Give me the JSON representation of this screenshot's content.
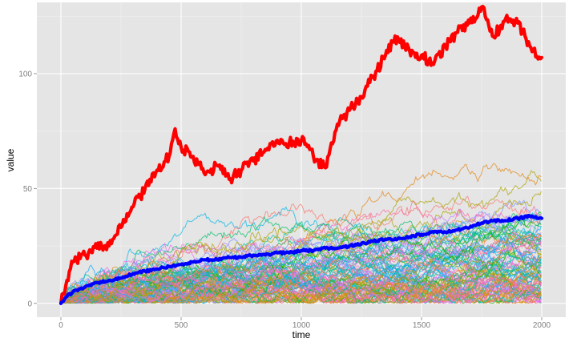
{
  "chart_data": {
    "type": "line",
    "title": "",
    "xlabel": "time",
    "ylabel": "value",
    "xlim": [
      -100,
      2100
    ],
    "ylim": [
      -6,
      131
    ],
    "x_ticks": [
      0,
      500,
      1000,
      1500,
      2000
    ],
    "x_tick_labels": [
      "0",
      "500",
      "1000",
      "1500",
      "2000"
    ],
    "y_ticks": [
      0,
      50,
      100
    ],
    "y_tick_labels": [
      "0",
      "50",
      "100"
    ],
    "grid": true,
    "legend": "none",
    "background": "#e5e5e5",
    "gridline_color": "#ffffff",
    "n_background_series": 100,
    "background_series_note": "about 100 thin random-walk series colored with a hue palette, starting at 0 at time 0 and reaching mostly 0 to 75 by time 2000",
    "background_palette": [
      "#F8766D",
      "#E68613",
      "#CD9600",
      "#ABA300",
      "#7CAE00",
      "#0CB702",
      "#00BE67",
      "#00C19A",
      "#00BFC4",
      "#00B8E7",
      "#00A9FF",
      "#8494FF",
      "#C77CFF",
      "#ED68ED",
      "#FF61CC",
      "#FF68A1"
    ],
    "series": [
      {
        "color": "#ff0000",
        "line_width": "thick",
        "x": [
          0,
          25,
          50,
          100,
          150,
          200,
          250,
          300,
          350,
          400,
          450,
          475,
          500,
          550,
          600,
          650,
          700,
          750,
          800,
          850,
          900,
          950,
          1000,
          1050,
          1100,
          1150,
          1200,
          1250,
          1300,
          1350,
          1400,
          1450,
          1500,
          1550,
          1600,
          1650,
          1700,
          1750,
          1800,
          1850,
          1900,
          1950,
          2000
        ],
        "values": [
          0,
          10,
          18,
          21,
          24,
          25,
          33,
          42,
          50,
          58,
          64,
          76,
          68,
          64,
          56,
          60,
          54,
          58,
          62,
          67,
          71,
          70,
          71,
          64,
          59,
          78,
          84,
          90,
          99,
          108,
          116,
          110,
          108,
          104,
          112,
          118,
          122,
          129,
          116,
          124,
          122,
          112,
          107
        ]
      },
      {
        "color": "#0000ff",
        "line_width": "thick",
        "x": [
          0,
          25,
          50,
          100,
          150,
          200,
          250,
          300,
          350,
          400,
          450,
          500,
          550,
          600,
          650,
          700,
          750,
          800,
          850,
          900,
          950,
          1000,
          1050,
          1100,
          1150,
          1200,
          1250,
          1300,
          1350,
          1400,
          1450,
          1500,
          1550,
          1600,
          1650,
          1700,
          1750,
          1800,
          1850,
          1900,
          1950,
          2000
        ],
        "values": [
          0,
          3,
          5,
          7,
          9,
          10,
          11,
          13,
          14,
          15,
          16,
          17,
          18,
          19,
          19,
          20,
          20,
          21,
          21,
          22,
          22,
          23,
          23,
          24,
          24,
          25,
          26,
          27,
          28,
          28,
          29,
          30,
          31,
          31,
          32,
          33,
          35,
          36,
          36,
          37,
          38,
          37
        ]
      }
    ]
  }
}
